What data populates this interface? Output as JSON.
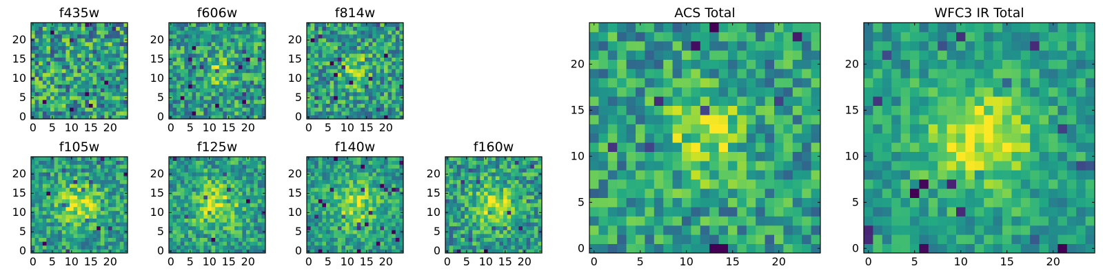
{
  "figure": {
    "description": "HST cutouts per filter and stacked totals",
    "colormap": "viridis"
  },
  "chart_data": [
    {
      "type": "heatmap",
      "title": "f435w",
      "grid": [
        25,
        25
      ],
      "xlim": [
        0,
        24
      ],
      "ylim": [
        0,
        24
      ],
      "xticks": [
        0,
        5,
        10,
        15,
        20
      ],
      "yticks": [
        0,
        5,
        10,
        15,
        20
      ],
      "source_strength": 0.0,
      "source_sigma": 3.0,
      "noise": 0.65,
      "seed": 11
    },
    {
      "type": "heatmap",
      "title": "f606w",
      "grid": [
        25,
        25
      ],
      "xlim": [
        0,
        24
      ],
      "ylim": [
        0,
        24
      ],
      "xticks": [
        0,
        5,
        10,
        15,
        20
      ],
      "yticks": [
        0,
        5,
        10,
        15,
        20
      ],
      "source_strength": 0.45,
      "source_sigma": 2.6,
      "noise": 0.55,
      "seed": 23
    },
    {
      "type": "heatmap",
      "title": "f814w",
      "grid": [
        25,
        25
      ],
      "xlim": [
        0,
        24
      ],
      "ylim": [
        0,
        24
      ],
      "xticks": [
        0,
        5,
        10,
        15,
        20
      ],
      "yticks": [
        0,
        5,
        10,
        15,
        20
      ],
      "source_strength": 0.6,
      "source_sigma": 2.8,
      "noise": 0.55,
      "seed": 37
    },
    {
      "type": "heatmap",
      "title": "f105w",
      "grid": [
        25,
        25
      ],
      "xlim": [
        0,
        24
      ],
      "ylim": [
        0,
        24
      ],
      "xticks": [
        0,
        5,
        10,
        15,
        20
      ],
      "yticks": [
        0,
        5,
        10,
        15,
        20
      ],
      "source_strength": 0.75,
      "source_sigma": 4.0,
      "noise": 0.45,
      "seed": 41
    },
    {
      "type": "heatmap",
      "title": "f125w",
      "grid": [
        25,
        25
      ],
      "xlim": [
        0,
        24
      ],
      "ylim": [
        0,
        24
      ],
      "xticks": [
        0,
        5,
        10,
        15,
        20
      ],
      "yticks": [
        0,
        5,
        10,
        15,
        20
      ],
      "source_strength": 0.7,
      "source_sigma": 4.5,
      "noise": 0.45,
      "seed": 53
    },
    {
      "type": "heatmap",
      "title": "f140w",
      "grid": [
        25,
        25
      ],
      "xlim": [
        0,
        24
      ],
      "ylim": [
        0,
        24
      ],
      "xticks": [
        0,
        5,
        10,
        15,
        20
      ],
      "yticks": [
        0,
        5,
        10,
        15,
        20
      ],
      "source_strength": 0.65,
      "source_sigma": 4.5,
      "noise": 0.4,
      "seed": 67
    },
    {
      "type": "heatmap",
      "title": "f160w",
      "grid": [
        25,
        25
      ],
      "xlim": [
        0,
        24
      ],
      "ylim": [
        0,
        24
      ],
      "xticks": [
        0,
        5,
        10,
        15,
        20
      ],
      "yticks": [
        0,
        5,
        10,
        15,
        20
      ],
      "source_strength": 0.8,
      "source_sigma": 3.8,
      "noise": 0.5,
      "seed": 79
    },
    {
      "type": "heatmap",
      "title": "ACS Total",
      "grid": [
        25,
        25
      ],
      "xlim": [
        0,
        24
      ],
      "ylim": [
        0,
        24
      ],
      "xticks": [
        0,
        5,
        10,
        15,
        20
      ],
      "yticks": [
        0,
        5,
        10,
        15,
        20
      ],
      "source_strength": 0.7,
      "source_sigma": 3.2,
      "noise": 0.5,
      "seed": 97
    },
    {
      "type": "heatmap",
      "title": "WFC3 IR Total",
      "grid": [
        25,
        25
      ],
      "xlim": [
        0,
        24
      ],
      "ylim": [
        0,
        24
      ],
      "xticks": [
        0,
        5,
        10,
        15,
        20
      ],
      "yticks": [
        0,
        5,
        10,
        15,
        20
      ],
      "source_strength": 0.9,
      "source_sigma": 4.2,
      "noise": 0.35,
      "seed": 101
    }
  ]
}
